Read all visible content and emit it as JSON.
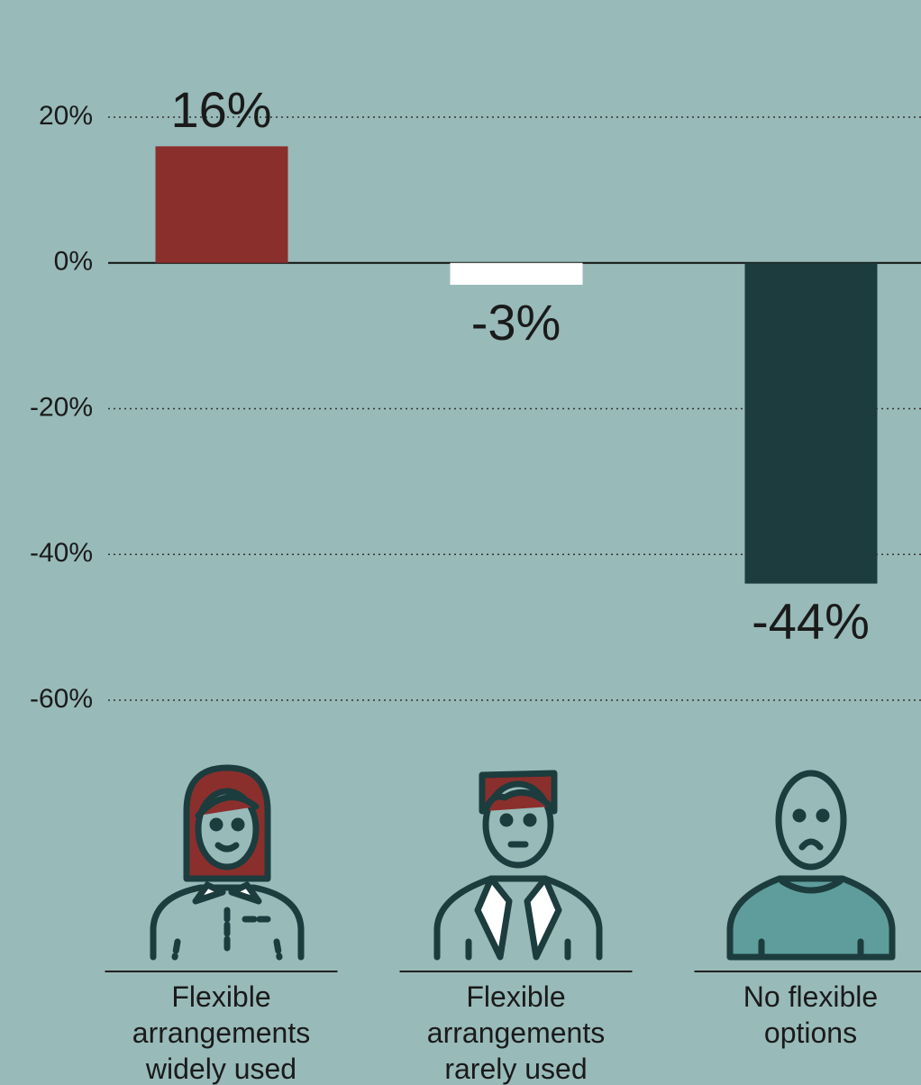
{
  "chart_data": {
    "type": "bar",
    "categories": [
      "Flexible arrangements widely used",
      "Flexible arrangements rarely used",
      "No flexible options"
    ],
    "values": [
      16,
      -3,
      -44
    ],
    "value_labels": [
      "16%",
      "-3%",
      "-44%"
    ],
    "colors": [
      "#8b2f2c",
      "#ffffff",
      "#1c3c3e"
    ],
    "ylim": [
      -60,
      20
    ],
    "yticks": [
      {
        "value": 20,
        "label": "20%"
      },
      {
        "value": 0,
        "label": "0%"
      },
      {
        "value": -20,
        "label": "-20%"
      },
      {
        "value": -40,
        "label": "-40%"
      },
      {
        "value": -60,
        "label": "-60%"
      }
    ],
    "grid": true
  }
}
